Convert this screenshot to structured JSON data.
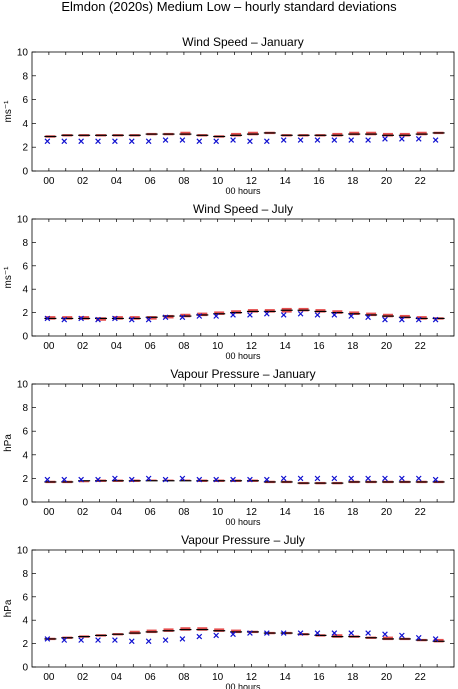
{
  "title": "Elmdon (2020s) Medium Low – hourly standard deviations",
  "colors": {
    "model_range": "#e03030",
    "model_median": "#000000",
    "observed": "#1010d0"
  },
  "chart_data": [
    {
      "type": "scatter",
      "title": "Wind Speed – January",
      "xlabel": "00 hours",
      "ylabel": "ms⁻¹",
      "ylim": [
        0,
        10
      ],
      "yticks": [
        "0",
        "2",
        "4",
        "6",
        "8",
        "10"
      ],
      "xlim": [
        -1,
        24
      ],
      "xticks": [
        "00",
        "02",
        "04",
        "06",
        "08",
        "10",
        "12",
        "14",
        "16",
        "18",
        "20",
        "22"
      ],
      "x": [
        0,
        1,
        2,
        3,
        4,
        5,
        6,
        7,
        8,
        9,
        10,
        11,
        12,
        13,
        14,
        15,
        16,
        17,
        18,
        19,
        20,
        21,
        22,
        23
      ],
      "series": [
        {
          "marker": "range",
          "low": [
            2.8,
            2.9,
            2.9,
            2.9,
            2.9,
            2.9,
            3.0,
            3.0,
            3.0,
            2.9,
            2.8,
            2.9,
            3.0,
            3.1,
            2.9,
            2.9,
            2.9,
            2.9,
            3.0,
            3.0,
            2.9,
            2.9,
            3.0,
            3.1
          ],
          "high": [
            3.0,
            3.1,
            3.1,
            3.1,
            3.1,
            3.1,
            3.2,
            3.2,
            3.3,
            3.1,
            3.0,
            3.2,
            3.3,
            3.3,
            3.1,
            3.1,
            3.1,
            3.2,
            3.3,
            3.3,
            3.2,
            3.2,
            3.3,
            3.3
          ]
        },
        {
          "marker": "dash",
          "values": [
            2.9,
            3.0,
            3.0,
            3.0,
            3.0,
            3.0,
            3.1,
            3.1,
            3.1,
            3.0,
            2.9,
            3.0,
            3.1,
            3.2,
            3.0,
            3.0,
            3.0,
            3.0,
            3.1,
            3.1,
            3.0,
            3.0,
            3.1,
            3.2
          ]
        },
        {
          "marker": "x",
          "values": [
            2.5,
            2.5,
            2.5,
            2.5,
            2.5,
            2.5,
            2.5,
            2.6,
            2.6,
            2.5,
            2.5,
            2.6,
            2.5,
            2.5,
            2.6,
            2.6,
            2.6,
            2.6,
            2.6,
            2.6,
            2.7,
            2.7,
            2.7,
            2.6
          ]
        }
      ]
    },
    {
      "type": "scatter",
      "title": "Wind Speed – July",
      "xlabel": "00 hours",
      "ylabel": "ms⁻¹",
      "ylim": [
        0,
        10
      ],
      "yticks": [
        "0",
        "2",
        "4",
        "6",
        "8",
        "10"
      ],
      "xlim": [
        -1,
        24
      ],
      "xticks": [
        "00",
        "02",
        "04",
        "06",
        "08",
        "10",
        "12",
        "14",
        "16",
        "18",
        "20",
        "22"
      ],
      "x": [
        0,
        1,
        2,
        3,
        4,
        5,
        6,
        7,
        8,
        9,
        10,
        11,
        12,
        13,
        14,
        15,
        16,
        17,
        18,
        19,
        20,
        21,
        22,
        23
      ],
      "series": [
        {
          "marker": "range",
          "low": [
            1.4,
            1.4,
            1.4,
            1.3,
            1.4,
            1.4,
            1.4,
            1.5,
            1.6,
            1.7,
            1.8,
            1.9,
            2.0,
            2.0,
            2.0,
            2.1,
            2.0,
            1.9,
            1.8,
            1.7,
            1.6,
            1.5,
            1.4,
            1.4
          ],
          "high": [
            1.7,
            1.7,
            1.7,
            1.6,
            1.7,
            1.7,
            1.7,
            1.8,
            1.9,
            2.0,
            2.1,
            2.2,
            2.3,
            2.3,
            2.4,
            2.4,
            2.3,
            2.2,
            2.1,
            2.0,
            1.9,
            1.8,
            1.7,
            1.6
          ]
        },
        {
          "marker": "dash",
          "values": [
            1.5,
            1.5,
            1.5,
            1.5,
            1.5,
            1.5,
            1.6,
            1.7,
            1.7,
            1.8,
            1.9,
            2.0,
            2.1,
            2.1,
            2.2,
            2.2,
            2.1,
            2.0,
            1.9,
            1.8,
            1.7,
            1.6,
            1.5,
            1.5
          ]
        },
        {
          "marker": "x",
          "values": [
            1.5,
            1.4,
            1.5,
            1.4,
            1.5,
            1.4,
            1.4,
            1.6,
            1.6,
            1.7,
            1.7,
            1.8,
            1.8,
            1.9,
            1.8,
            1.9,
            1.8,
            1.8,
            1.7,
            1.6,
            1.4,
            1.4,
            1.4,
            1.4
          ]
        }
      ]
    },
    {
      "type": "scatter",
      "title": "Vapour Pressure – January",
      "xlabel": "00 hours",
      "ylabel": "hPa",
      "ylim": [
        0,
        10
      ],
      "yticks": [
        "0",
        "2",
        "4",
        "6",
        "8",
        "10"
      ],
      "xlim": [
        -1,
        24
      ],
      "xticks": [
        "00",
        "02",
        "04",
        "06",
        "08",
        "10",
        "12",
        "14",
        "16",
        "18",
        "20",
        "22"
      ],
      "x": [
        0,
        1,
        2,
        3,
        4,
        5,
        6,
        7,
        8,
        9,
        10,
        11,
        12,
        13,
        14,
        15,
        16,
        17,
        18,
        19,
        20,
        21,
        22,
        23
      ],
      "series": [
        {
          "marker": "range",
          "low": [
            1.6,
            1.6,
            1.7,
            1.7,
            1.7,
            1.7,
            1.8,
            1.8,
            1.8,
            1.7,
            1.7,
            1.7,
            1.7,
            1.6,
            1.6,
            1.5,
            1.5,
            1.5,
            1.6,
            1.6,
            1.6,
            1.6,
            1.6,
            1.6
          ],
          "high": [
            1.8,
            1.8,
            1.8,
            1.9,
            1.9,
            1.9,
            1.9,
            1.9,
            1.9,
            1.9,
            1.9,
            1.9,
            1.9,
            1.8,
            1.8,
            1.7,
            1.7,
            1.7,
            1.8,
            1.8,
            1.8,
            1.8,
            1.8,
            1.8
          ]
        },
        {
          "marker": "dash",
          "values": [
            1.7,
            1.7,
            1.8,
            1.8,
            1.8,
            1.8,
            1.8,
            1.8,
            1.8,
            1.8,
            1.8,
            1.8,
            1.8,
            1.7,
            1.7,
            1.6,
            1.6,
            1.6,
            1.7,
            1.7,
            1.7,
            1.7,
            1.7,
            1.7
          ]
        },
        {
          "marker": "x",
          "values": [
            1.9,
            1.9,
            1.9,
            1.9,
            2.0,
            1.9,
            2.0,
            1.9,
            2.0,
            1.9,
            1.9,
            1.9,
            1.9,
            1.9,
            2.0,
            2.0,
            2.0,
            2.0,
            2.0,
            2.0,
            2.0,
            2.0,
            2.0,
            1.9
          ]
        }
      ]
    },
    {
      "type": "scatter",
      "title": "Vapour Pressure – July",
      "xlabel": "00 hours",
      "ylabel": "hPa",
      "ylim": [
        0,
        10
      ],
      "yticks": [
        "0",
        "2",
        "4",
        "6",
        "8",
        "10"
      ],
      "xlim": [
        -1,
        24
      ],
      "xticks": [
        "00",
        "02",
        "04",
        "06",
        "08",
        "10",
        "12",
        "14",
        "16",
        "18",
        "20",
        "22"
      ],
      "x": [
        0,
        1,
        2,
        3,
        4,
        5,
        6,
        7,
        8,
        9,
        10,
        11,
        12,
        13,
        14,
        15,
        16,
        17,
        18,
        19,
        20,
        21,
        22,
        23
      ],
      "series": [
        {
          "marker": "range",
          "low": [
            2.3,
            2.4,
            2.5,
            2.6,
            2.7,
            2.8,
            2.9,
            3.0,
            3.1,
            3.1,
            3.0,
            2.9,
            2.9,
            2.8,
            2.8,
            2.7,
            2.6,
            2.5,
            2.5,
            2.4,
            2.3,
            2.3,
            2.2,
            2.1
          ],
          "high": [
            2.5,
            2.6,
            2.7,
            2.8,
            2.9,
            3.1,
            3.2,
            3.3,
            3.4,
            3.4,
            3.3,
            3.2,
            3.1,
            3.0,
            3.0,
            2.9,
            2.8,
            2.8,
            2.7,
            2.6,
            2.6,
            2.5,
            2.4,
            2.4
          ]
        },
        {
          "marker": "dash",
          "values": [
            2.4,
            2.5,
            2.6,
            2.7,
            2.8,
            2.9,
            3.0,
            3.1,
            3.2,
            3.2,
            3.1,
            3.0,
            3.0,
            2.9,
            2.9,
            2.8,
            2.7,
            2.6,
            2.6,
            2.5,
            2.4,
            2.4,
            2.3,
            2.2
          ]
        },
        {
          "marker": "x",
          "values": [
            2.4,
            2.3,
            2.3,
            2.3,
            2.3,
            2.2,
            2.2,
            2.3,
            2.4,
            2.6,
            2.7,
            2.8,
            2.9,
            2.9,
            2.9,
            2.9,
            2.9,
            2.9,
            2.9,
            2.9,
            2.8,
            2.7,
            2.5,
            2.4
          ]
        }
      ]
    }
  ]
}
